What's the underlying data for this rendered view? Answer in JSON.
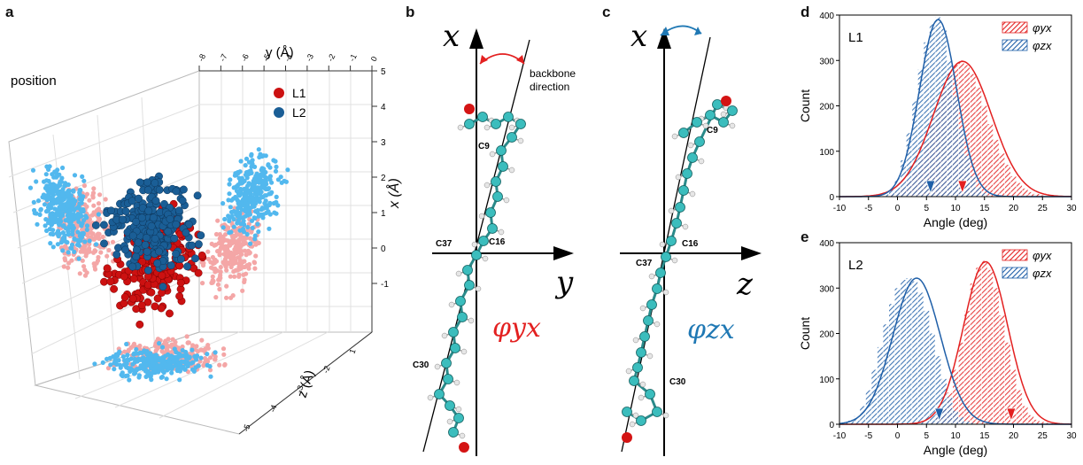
{
  "panels": {
    "a": {
      "letter": "a",
      "label": "position",
      "y_axis_title": "y (Å)",
      "x_axis_title": "x (Å)",
      "z_axis_title": "z (Å)",
      "y_ticks": [
        "-8",
        "-7",
        "-6",
        "-5",
        "-4",
        "-3",
        "-2",
        "-1",
        "0"
      ],
      "x_ticks": [
        "5",
        "4",
        "3",
        "2",
        "1",
        "0",
        "-1"
      ],
      "z_ticks": [
        "1",
        "-2",
        "-3",
        "-4",
        "-5"
      ],
      "legend": [
        {
          "label": "L1",
          "color": "#cc1111"
        },
        {
          "label": "L2",
          "color": "#1a5e96"
        }
      ],
      "colors": {
        "l1": "#cc1111",
        "l2": "#1a5e96",
        "l1_proj": "#f4a6a6",
        "l2_proj": "#52b8ee"
      }
    },
    "b": {
      "letter": "b",
      "axis_x": "x",
      "axis_y": "y",
      "angle_label": "φyx",
      "annotation": "backbone direction",
      "atoms": [
        "C9",
        "C37",
        "C16",
        "C30"
      ],
      "angle_color": "#e32020"
    },
    "c": {
      "letter": "c",
      "axis_x": "x",
      "axis_z": "z",
      "angle_label": "φzx",
      "atoms": [
        "C9",
        "C16",
        "C37",
        "C30"
      ],
      "angle_color": "#1f78b4"
    },
    "d": {
      "letter": "d",
      "label": "L1"
    },
    "e": {
      "letter": "e",
      "label": "L2"
    }
  },
  "chart_data": [
    {
      "type": "bar",
      "panel": "d",
      "title": "",
      "xlabel": "Angle (deg)",
      "ylabel": "Count",
      "xlim": [
        -10,
        30
      ],
      "ylim": [
        0,
        400
      ],
      "xticks": [
        "-10",
        "-5",
        "0",
        "5",
        "10",
        "15",
        "20",
        "25",
        "30"
      ],
      "yticks": [
        "0",
        "100",
        "200",
        "300",
        "400"
      ],
      "legend": [
        "φyx",
        "φzx"
      ],
      "series": [
        {
          "name": "φyx",
          "color": "#e32020",
          "fit_mean": 11.2,
          "fit_sd": 5.0,
          "fit_peak": 298,
          "bin_centers": [
            -1,
            0,
            1,
            2,
            3,
            4,
            5,
            6,
            7,
            8,
            9,
            10,
            11,
            12,
            13,
            14,
            15,
            16,
            17,
            18,
            19,
            20,
            21,
            22,
            23,
            24,
            25
          ],
          "values": [
            5,
            10,
            20,
            35,
            55,
            85,
            120,
            160,
            200,
            240,
            270,
            290,
            300,
            290,
            270,
            240,
            200,
            160,
            125,
            95,
            70,
            45,
            30,
            18,
            10,
            6,
            3
          ],
          "marker": 11.2
        },
        {
          "name": "φzx",
          "color": "#1f5fa8",
          "fit_mean": 7.0,
          "fit_sd": 3.2,
          "fit_peak": 390,
          "bin_centers": [
            -2,
            -1,
            0,
            1,
            2,
            3,
            4,
            5,
            6,
            7,
            8,
            9,
            10,
            11,
            12,
            13,
            14,
            15
          ],
          "values": [
            5,
            15,
            40,
            80,
            140,
            210,
            280,
            340,
            380,
            395,
            370,
            300,
            220,
            150,
            90,
            45,
            20,
            8
          ],
          "marker": 5.7
        }
      ]
    },
    {
      "type": "bar",
      "panel": "e",
      "title": "",
      "xlabel": "Angle (deg)",
      "ylabel": "Count",
      "xlim": [
        -10,
        30
      ],
      "ylim": [
        0,
        400
      ],
      "xticks": [
        "-10",
        "-5",
        "0",
        "5",
        "10",
        "15",
        "20",
        "25",
        "30"
      ],
      "yticks": [
        "0",
        "100",
        "200",
        "300",
        "400"
      ],
      "legend": [
        "φyx",
        "φzx"
      ],
      "series": [
        {
          "name": "φyx",
          "color": "#e32020",
          "fit_mean": 15.2,
          "fit_sd": 3.8,
          "fit_peak": 358,
          "bin_centers": [
            6,
            7,
            8,
            9,
            10,
            11,
            12,
            13,
            14,
            15,
            16,
            17,
            18,
            19,
            20,
            21,
            22,
            23,
            24,
            25,
            26,
            27
          ],
          "values": [
            5,
            15,
            35,
            70,
            120,
            180,
            250,
            310,
            345,
            360,
            340,
            300,
            240,
            180,
            120,
            75,
            40,
            20,
            10,
            5,
            3,
            2
          ],
          "marker": 19.6
        },
        {
          "name": "φzx",
          "color": "#1f5fa8",
          "fit_mean": 3.3,
          "fit_sd": 4.1,
          "fit_peak": 322,
          "bin_centers": [
            -9,
            -8,
            -7,
            -6,
            -5,
            -4,
            -3,
            -2,
            -1,
            0,
            1,
            2,
            3,
            4,
            5,
            6,
            7,
            8,
            9,
            10,
            11,
            12,
            13
          ],
          "values": [
            3,
            8,
            18,
            40,
            75,
            120,
            170,
            220,
            265,
            300,
            318,
            322,
            315,
            290,
            250,
            200,
            150,
            100,
            60,
            30,
            15,
            6,
            3
          ],
          "marker": 7.2
        }
      ]
    }
  ]
}
